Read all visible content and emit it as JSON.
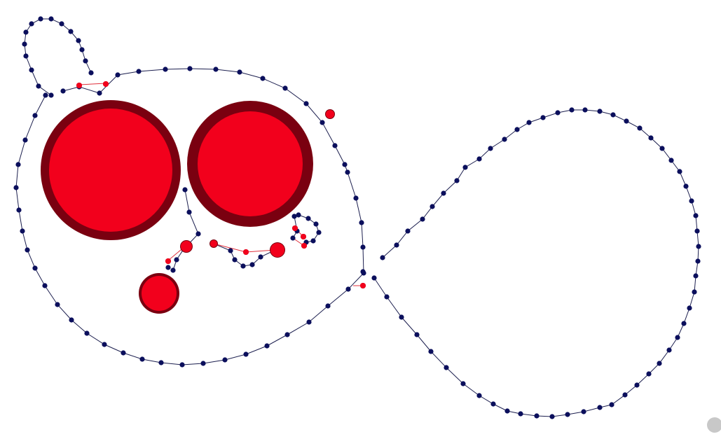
{
  "diagram": {
    "type": "network-graph",
    "colors": {
      "background": "#ffffff",
      "edge": "#1c1f4f",
      "node": "#0b0f5c",
      "highlight_node": "#f2001c",
      "highlight_outline": "#7a0010",
      "highlight_edge": "#e0303c",
      "scroll_handle": "#c8c8c8"
    },
    "node_kinds": [
      "regular",
      "highlighted"
    ],
    "legend": [],
    "labels": []
  }
}
